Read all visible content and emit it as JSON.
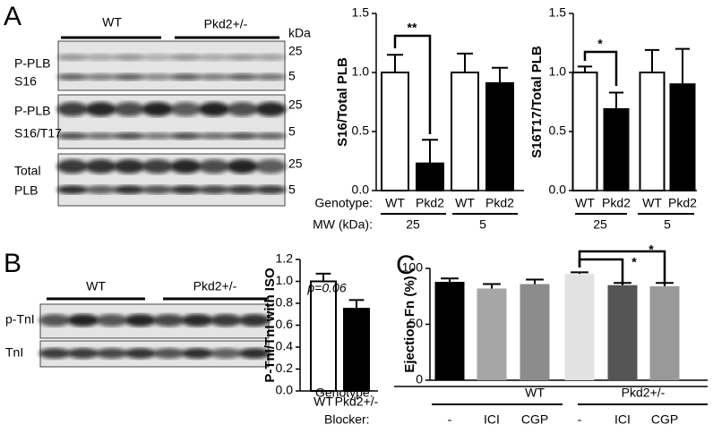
{
  "figure": {
    "panel_labels": [
      "A",
      "B",
      "C"
    ],
    "blot_a": {
      "groups": [
        "WT",
        "Pkd2+/-"
      ],
      "unit": "kDa",
      "rows": [
        {
          "name": [
            "P-PLB",
            "S16"
          ],
          "markers": [
            25,
            5
          ]
        },
        {
          "name": [
            "P-PLB",
            "S16/T17"
          ],
          "markers": [
            25,
            5
          ]
        },
        {
          "name": [
            "Total",
            "PLB"
          ],
          "markers": [
            25,
            5
          ]
        }
      ]
    },
    "blot_b": {
      "groups": [
        "WT",
        "Pkd2+/-"
      ],
      "rows": [
        "p-TnI",
        "TnI"
      ]
    }
  },
  "chart_data": [
    {
      "type": "bar",
      "y_label": "S16/Total PLB",
      "category_label": "Genotype:",
      "categories": [
        "WT",
        "Pkd2",
        "WT",
        "Pkd2"
      ],
      "group_label": "MW (kDa):",
      "groups": [
        "25",
        "5"
      ],
      "values": [
        1.0,
        0.23,
        1.0,
        0.91
      ],
      "errors": [
        0.15,
        0.2,
        0.16,
        0.13
      ],
      "colors": [
        "#ffffff",
        "#000000",
        "#ffffff",
        "#000000"
      ],
      "ylim": [
        0,
        1.5
      ],
      "yticks": [
        {
          "value": 0,
          "label": "0.0"
        },
        0.5,
        {
          "value": 1,
          "label": "1.0"
        },
        1.5
      ],
      "annotations": [
        "**"
      ]
    },
    {
      "type": "bar",
      "y_label": "S16T17/Total PLB",
      "categories": [
        "WT",
        "Pkd2",
        "WT",
        "Pkd2"
      ],
      "groups": [
        "25",
        "5"
      ],
      "values": [
        1.0,
        0.69,
        1.0,
        0.9
      ],
      "errors": [
        0.05,
        0.14,
        0.19,
        0.3
      ],
      "colors": [
        "#ffffff",
        "#000000",
        "#ffffff",
        "#000000"
      ],
      "ylim": [
        0,
        1.5
      ],
      "yticks": [
        {
          "value": 0,
          "label": "0.0"
        },
        0.5,
        {
          "value": 1,
          "label": "1.0"
        },
        1.5
      ],
      "annotations": [
        "*"
      ]
    },
    {
      "type": "bar",
      "y_label": "P-TnI/TnI with ISO",
      "categories": [
        "WT",
        "Pkd2+/-"
      ],
      "values": [
        1.0,
        0.75
      ],
      "errors": [
        0.07,
        0.08
      ],
      "colors": [
        "#ffffff",
        "#000000"
      ],
      "ylim": [
        0,
        1.2
      ],
      "yticks": [
        {
          "value": 0,
          "label": "0.0"
        },
        0.2,
        0.4,
        0.6,
        0.8,
        {
          "value": 1,
          "label": "1.0"
        },
        1.2
      ],
      "annotations": [
        "p=0.06"
      ]
    },
    {
      "type": "bar",
      "y_label": "Ejection Fn (%)",
      "category_label": "Blocker:",
      "categories": [
        "-",
        "ICI",
        "CGP",
        "-",
        "ICI",
        "CGP"
      ],
      "group_label": "Genotype:",
      "groups": [
        "WT",
        "Pkd2+/-"
      ],
      "values": [
        88,
        82,
        86,
        95,
        85,
        84
      ],
      "errors": [
        3,
        4,
        4,
        1.5,
        2,
        3
      ],
      "colors": [
        "#000000",
        "#a6a6a6",
        "#8c8c8c",
        "#e2e2e2",
        "#555555",
        "#999999"
      ],
      "ylim": [
        0,
        100
      ],
      "yticks": [
        0,
        50,
        100
      ],
      "annotations": [
        "*",
        "*"
      ]
    }
  ]
}
